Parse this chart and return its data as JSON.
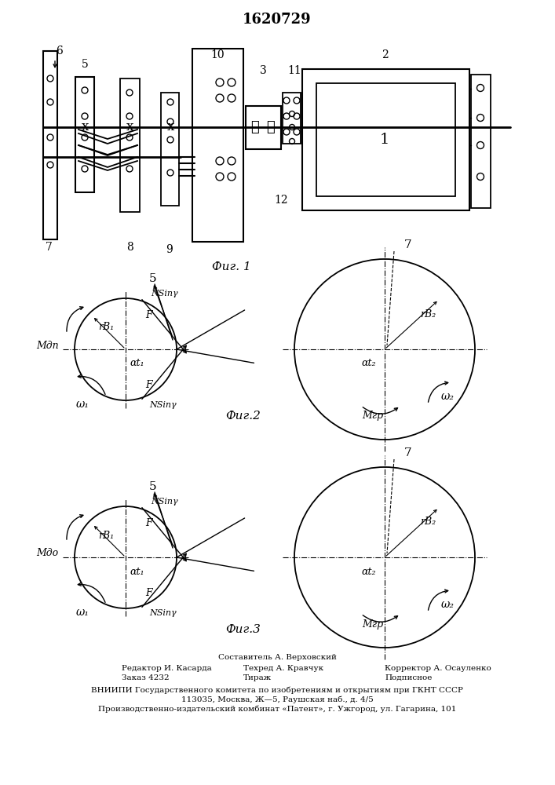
{
  "title": "1620729",
  "fig1_label": "Фиг. 1",
  "fig2_label": "Фиг.2",
  "fig3_label": "Фиг.3",
  "footer_line0": "Составитель А. Верховский",
  "footer_line1a": "Редактор И. Касарда",
  "footer_line1b": "Техред А. Кравчук",
  "footer_line1c": "Корректор А. Осауленко",
  "footer_line2a": "Заказ 4232",
  "footer_line2b": "Тираж",
  "footer_line2c": "Подписное",
  "footer_line3": "ВНИИПИ Государственного комитета по изобретениям и открытиям при ГКНТ СССР",
  "footer_line4": "113035, Москва, Ж—5, Раушская наб., д. 4/5",
  "footer_line5": "Производственно-издательский комбинат «Патент», г. Ужгород, ул. Гагарина, 101",
  "bg_color": "#ffffff",
  "line_color": "#000000"
}
